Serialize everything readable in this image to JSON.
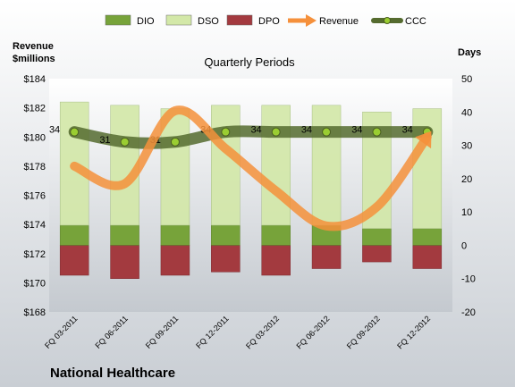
{
  "chart_data": {
    "type": "bar",
    "title": "Quarterly Periods",
    "company": "National Healthcare",
    "left_axis_label_line1": "Revenue",
    "left_axis_label_line2": "$millions",
    "right_axis_label": "Days",
    "categories": [
      "FQ 03-2011",
      "FQ 06-2011",
      "FQ 09-2011",
      "FQ 12-2011",
      "FQ 03-2012",
      "FQ 06-2012",
      "FQ 09-2012",
      "FQ 12-2012"
    ],
    "left_ylim": [
      168,
      184
    ],
    "left_ticks": [
      "$168",
      "$170",
      "$172",
      "$174",
      "$176",
      "$178",
      "$180",
      "$182",
      "$184"
    ],
    "right_ylim": [
      -20,
      50
    ],
    "right_ticks": [
      "-20",
      "-10",
      "0",
      "10",
      "20",
      "30",
      "40",
      "50"
    ],
    "series": [
      {
        "name": "DIO",
        "color": "#77a33a",
        "values": [
          6,
          6,
          6,
          6,
          6,
          6,
          5,
          5
        ]
      },
      {
        "name": "DSO",
        "color": "#d3e8a8",
        "values": [
          37,
          36,
          35,
          36,
          36,
          36,
          35,
          36
        ]
      },
      {
        "name": "DPO",
        "color": "#a33a3f",
        "values": [
          -9,
          -10,
          -9,
          -8,
          -9,
          -7,
          -5,
          -7
        ]
      },
      {
        "name": "Revenue",
        "color": "#f5903b",
        "values": [
          178.0,
          176.8,
          181.8,
          179.2,
          176.3,
          173.9,
          175.2,
          180.0
        ]
      },
      {
        "name": "CCC",
        "color": "#556b2f",
        "values": [
          34,
          31,
          31,
          34,
          34,
          34,
          34,
          34
        ]
      }
    ],
    "ccc_labels": [
      "34",
      "31",
      "31",
      "34",
      "34",
      "34",
      "34",
      "34"
    ],
    "grid": false,
    "legend_position": "top"
  }
}
